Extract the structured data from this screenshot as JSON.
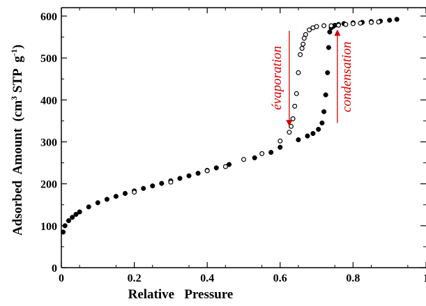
{
  "chart_data": {
    "type": "scatter",
    "title": "",
    "xlabel": "Relative   Pressure",
    "ylabel": "Adsorbed  Amount  (cm³ STP g⁻¹)",
    "ylabel_parts": {
      "main": "Adsorbed  Amount  (cm",
      "sup1": "3",
      "mid": " STP  g",
      "sup2": "-1",
      "end": ")"
    },
    "xlim": [
      0,
      1
    ],
    "ylim": [
      0,
      620
    ],
    "x_ticks": [
      0,
      0.2,
      0.4,
      0.6,
      0.8,
      1
    ],
    "x_tick_labels": [
      "0",
      "0.2",
      "0.4",
      "0.6",
      "0.8",
      "1"
    ],
    "y_ticks": [
      0,
      100,
      200,
      300,
      400,
      500,
      600
    ],
    "y_tick_labels": [
      "0",
      "100",
      "200",
      "300",
      "400",
      "500",
      "600"
    ],
    "grid": false,
    "series": [
      {
        "marker": "filled-circle",
        "color": "#000000",
        "x": [
          0.005,
          0.01,
          0.02,
          0.03,
          0.04,
          0.05,
          0.075,
          0.1,
          0.125,
          0.15,
          0.175,
          0.2,
          0.225,
          0.25,
          0.275,
          0.3,
          0.325,
          0.35,
          0.375,
          0.4,
          0.425,
          0.46,
          0.53,
          0.575,
          0.6,
          0.65,
          0.675,
          0.69,
          0.705,
          0.715,
          0.72,
          0.725,
          0.73,
          0.733,
          0.736,
          0.74,
          0.745,
          0.75,
          0.76,
          0.775,
          0.8,
          0.825,
          0.85,
          0.875,
          0.9,
          0.92
        ],
        "y": [
          85,
          100,
          112,
          120,
          127,
          133,
          145,
          155,
          163,
          170,
          177,
          183,
          189,
          195,
          201,
          207,
          213,
          219,
          225,
          232,
          238,
          246,
          262,
          275,
          287,
          305,
          314,
          320,
          330,
          345,
          372,
          412,
          465,
          525,
          562,
          572,
          575,
          578,
          580,
          582,
          584,
          585,
          587,
          588,
          590,
          592
        ]
      },
      {
        "marker": "open-circle",
        "color": "#000000",
        "x": [
          0.2,
          0.3,
          0.4,
          0.45,
          0.5,
          0.55,
          0.6,
          0.625,
          0.63,
          0.635,
          0.64,
          0.645,
          0.65,
          0.655,
          0.66,
          0.663,
          0.666,
          0.67,
          0.68,
          0.69,
          0.7,
          0.72,
          0.74,
          0.76,
          0.78,
          0.8,
          0.82,
          0.85,
          0.87
        ],
        "y": [
          180,
          204,
          231,
          241,
          258,
          272,
          302,
          323,
          337,
          355,
          385,
          415,
          465,
          508,
          523,
          533,
          547,
          556,
          567,
          572,
          575,
          577,
          577,
          578,
          580,
          582,
          583,
          585,
          586
        ]
      }
    ],
    "annotations": [
      {
        "text": "évaporation",
        "direction": "down",
        "x_at": 0.625,
        "y_from": 565,
        "y_to": 340
      },
      {
        "text": "condensation",
        "direction": "up",
        "x_at": 0.757,
        "y_from": 345,
        "y_to": 565
      }
    ],
    "annotation_color": "#d40000"
  }
}
